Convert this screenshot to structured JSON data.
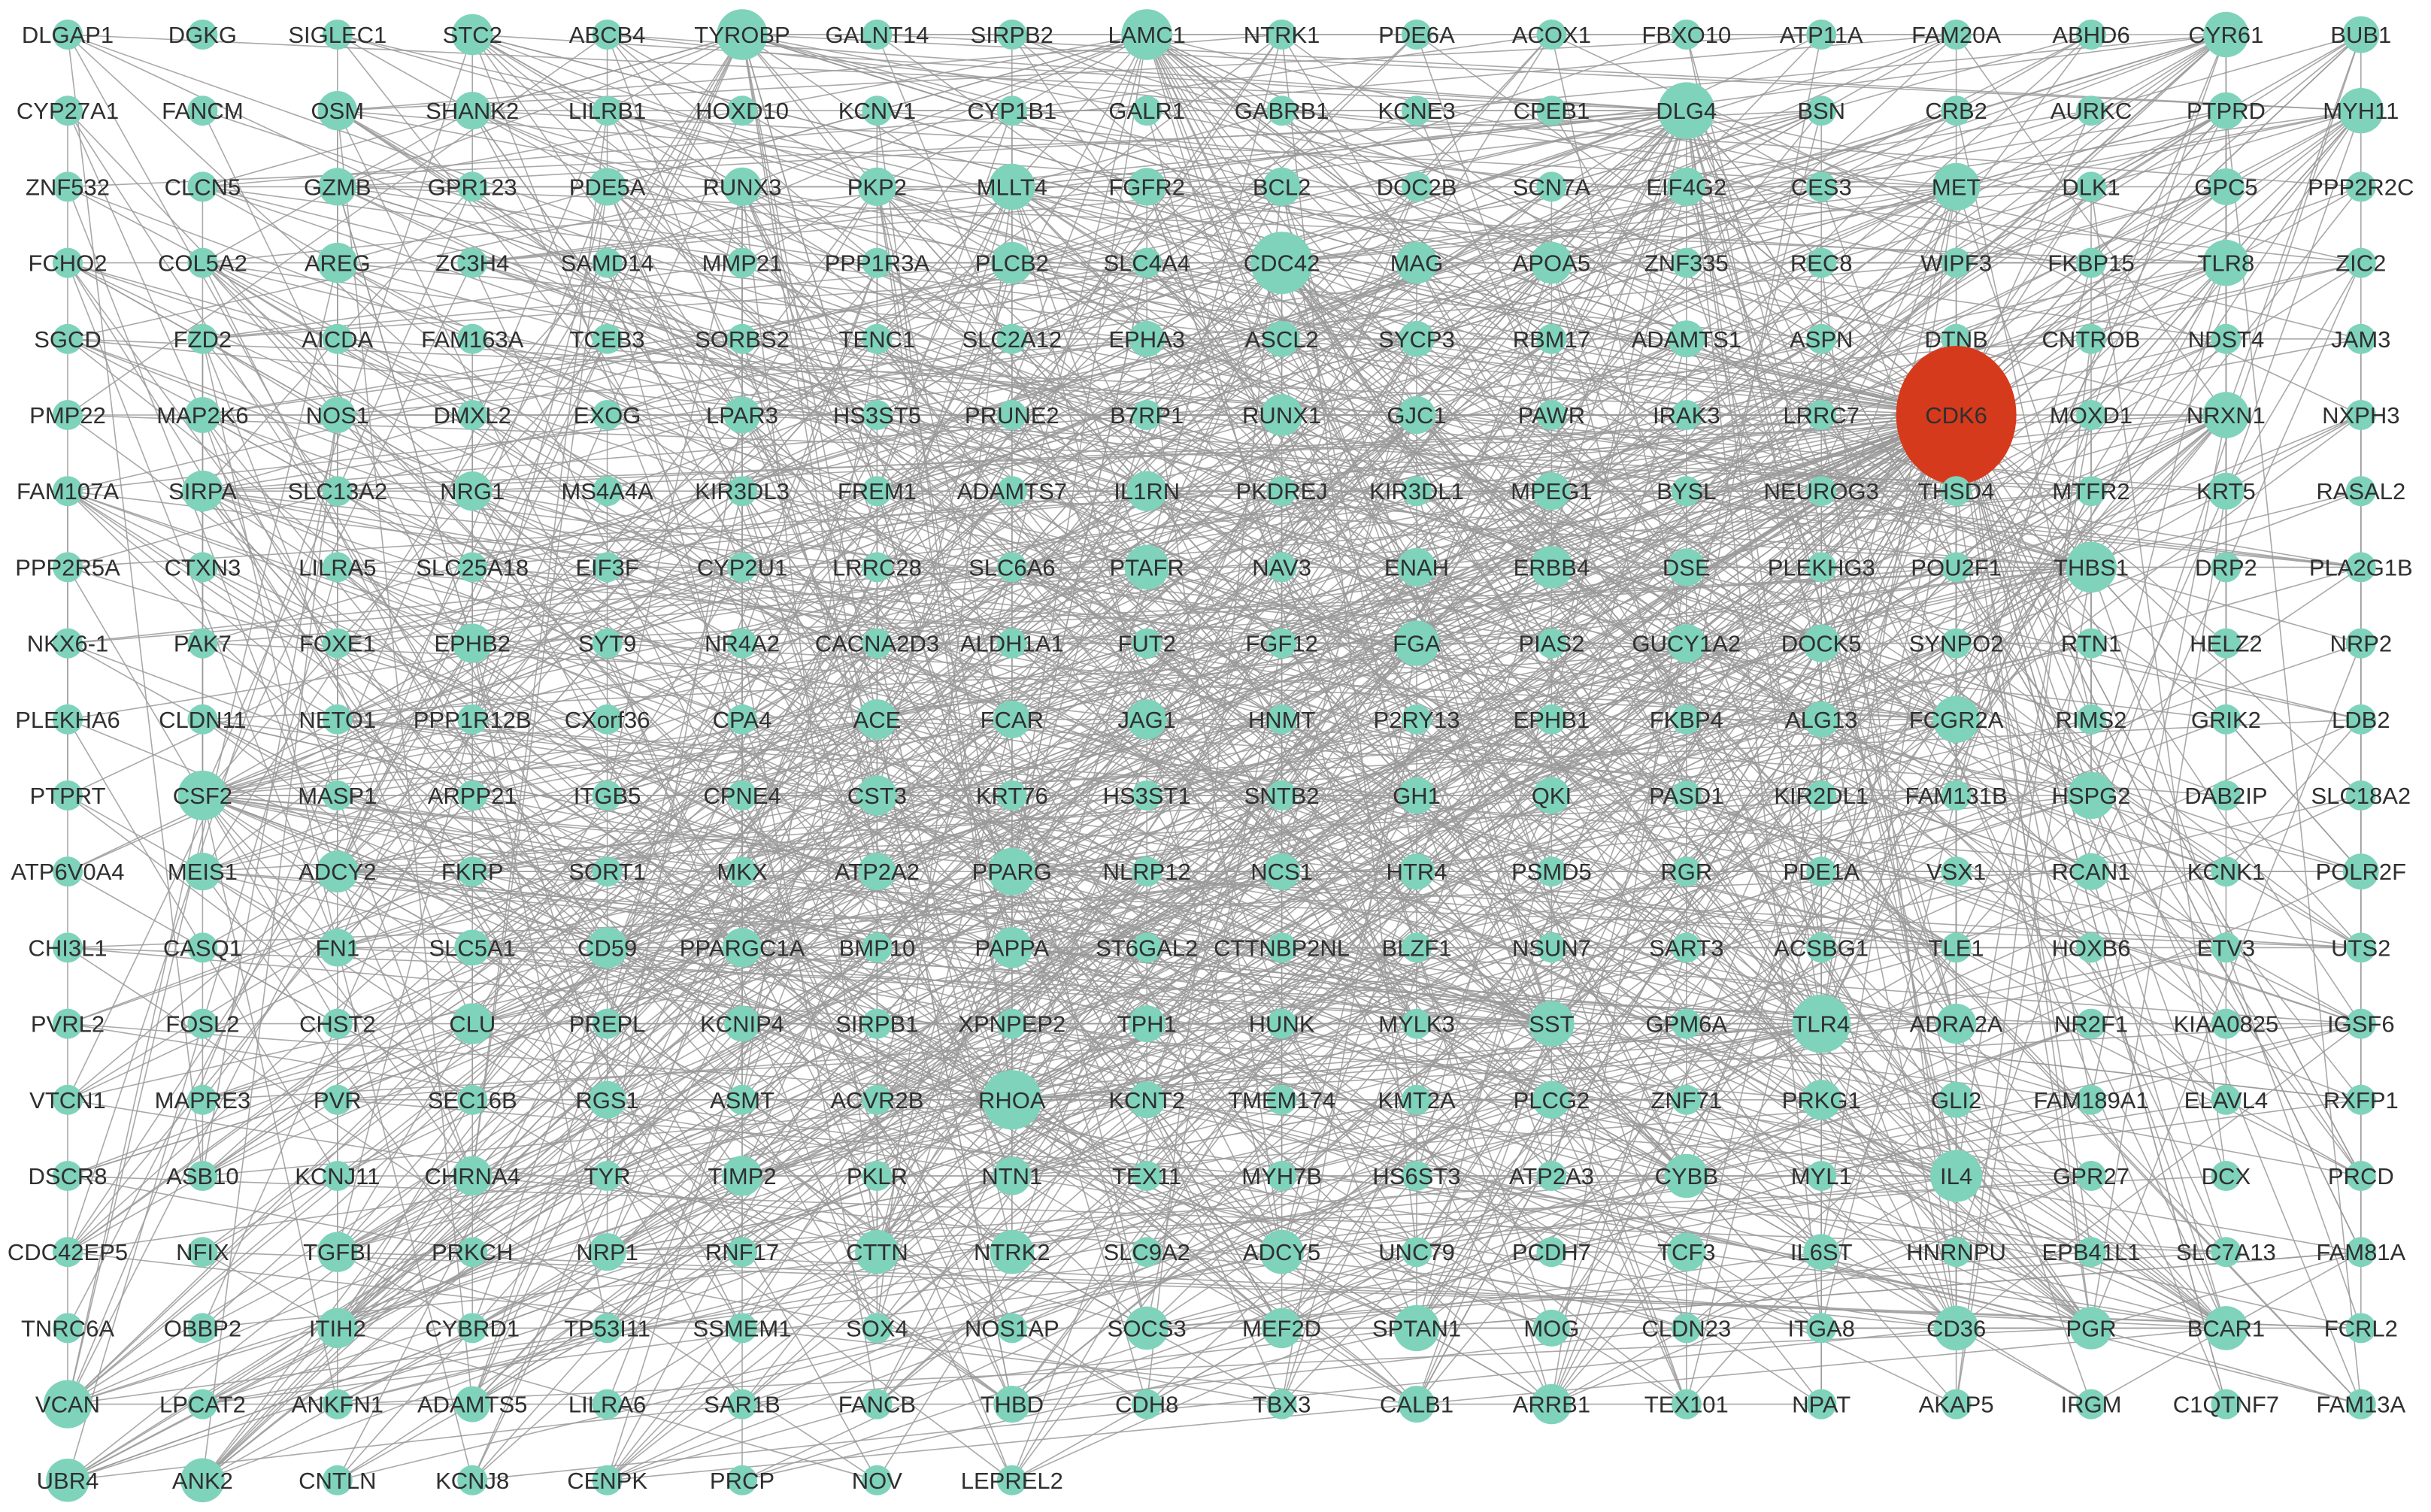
{
  "network": {
    "colors": {
      "node_default": "#7fd3bb",
      "node_highlight": "#d63a1c",
      "edge": "#9a9a9a",
      "label": "#2f2f2f",
      "background": "#ffffff"
    },
    "highlight_node": "CDK6",
    "rows": [
      [
        "DLGAP1",
        "DGKG",
        "SIGLEC1",
        "STC2",
        "ABCB4",
        "TYROBP",
        "GALNT14",
        "SIRPB2",
        "LAMC1",
        "NTRK1",
        "PDE6A",
        "ACOX1",
        "FBXO10",
        "ATP11A",
        "FAM20A",
        "ABHD6",
        "CYR61",
        "BUB1"
      ],
      [
        "CYP27A1",
        "FANCM",
        "OSM",
        "SHANK2",
        "LILRB1",
        "HOXD10",
        "KCNV1",
        "CYP1B1",
        "GALR1",
        "GABRB1",
        "KCNE3",
        "CPEB1",
        "DLG4",
        "BSN",
        "CRB2",
        "AURKC",
        "PTPRD",
        "MYH11"
      ],
      [
        "ZNF532",
        "CLCN5",
        "GZMB",
        "GPR123",
        "PDE5A",
        "RUNX3",
        "PKP2",
        "MLLT4",
        "FGFR2",
        "BCL2",
        "DOC2B",
        "SCN7A",
        "EIF4G2",
        "CES3",
        "MET",
        "DLK1",
        "GPC5",
        "PPP2R2C"
      ],
      [
        "FCHO2",
        "COL5A2",
        "AREG",
        "ZC3H4",
        "SAMD14",
        "MMP21",
        "PPP1R3A",
        "PLCB2",
        "SLC4A4",
        "CDC42",
        "MAG",
        "APOA5",
        "ZNF335",
        "REC8",
        "WIPF3",
        "FKBP15",
        "TLR8",
        "ZIC2"
      ],
      [
        "SGCD",
        "FZD2",
        "AICDA",
        "FAM163A",
        "TCEB3",
        "SORBS2",
        "TENC1",
        "SLC2A12",
        "EPHA3",
        "ASCL2",
        "SYCP3",
        "RBM17",
        "ADAMTS1",
        "ASPN",
        "DTNB",
        "CNTROB",
        "NDST4",
        "JAM3"
      ],
      [
        "PMP22",
        "MAP2K6",
        "NOS1",
        "DMXL2",
        "EXOG",
        "LPAR3",
        "HS3ST5",
        "PRUNE2",
        "B7RP1",
        "RUNX1",
        "GJC1",
        "PAWR",
        "IRAK3",
        "LRRC7",
        "CDK6",
        "MOXD1",
        "NRXN1",
        "NXPH3"
      ],
      [
        "FAM107A",
        "SIRPA",
        "SLC13A2",
        "NRG1",
        "MS4A4A",
        "KIR3DL3",
        "FREM1",
        "ADAMTS7",
        "IL1RN",
        "PKDREJ",
        "KIR3DL1",
        "MPEG1",
        "BYSL",
        "NEUROG3",
        "THSD4",
        "MTFR2",
        "KRT5",
        "RASAL2"
      ],
      [
        "PPP2R5A",
        "CTXN3",
        "LILRA5",
        "SLC25A18",
        "EIF3F",
        "CYP2U1",
        "LRRC28",
        "SLC6A6",
        "PTAFR",
        "NAV3",
        "ENAH",
        "ERBB4",
        "DSE",
        "PLEKHG3",
        "POU2F1",
        "THBS1",
        "DRP2",
        "PLA2G1B"
      ],
      [
        "NKX6-1",
        "PAK7",
        "FOXE1",
        "EPHB2",
        "SYT9",
        "NR4A2",
        "CACNA2D3",
        "ALDH1A1",
        "FUT2",
        "FGF12",
        "FGA",
        "PIAS2",
        "GUCY1A2",
        "DOCK5",
        "SYNPO2",
        "RTN1",
        "HELZ2",
        "NRP2"
      ],
      [
        "PLEKHA6",
        "CLDN11",
        "NETO1",
        "PPP1R12B",
        "CXorf36",
        "CPA4",
        "ACE",
        "FCAR",
        "JAG1",
        "HNMT",
        "P2RY13",
        "EPHB1",
        "FKBP4",
        "ALG13",
        "FCGR2A",
        "RIMS2",
        "GRIK2",
        "LDB2"
      ],
      [
        "PTPRT",
        "CSF2",
        "MASP1",
        "ARPP21",
        "ITGB5",
        "CPNE4",
        "CST3",
        "KRT76",
        "HS3ST1",
        "SNTB2",
        "GH1",
        "QKI",
        "PASD1",
        "KIR2DL1",
        "FAM131B",
        "HSPG2",
        "DAB2IP",
        "SLC18A2"
      ],
      [
        "ATP6V0A4",
        "MEIS1",
        "ADCY2",
        "FKRP",
        "SORT1",
        "MKX",
        "ATP2A2",
        "PPARG",
        "NLRP12",
        "NCS1",
        "HTR4",
        "PSMD5",
        "RGR",
        "PDE1A",
        "VSX1",
        "RCAN1",
        "KCNK1",
        "POLR2F"
      ],
      [
        "CHI3L1",
        "CASQ1",
        "FN1",
        "SLC5A1",
        "CD59",
        "PPARGC1A",
        "BMP10",
        "PAPPA",
        "ST6GAL2",
        "CTTNBP2NL",
        "BLZF1",
        "NSUN7",
        "SART3",
        "ACSBG1",
        "TLE1",
        "HOXB6",
        "ETV3",
        "UTS2"
      ],
      [
        "PVRL2",
        "FOSL2",
        "CHST2",
        "CLU",
        "PREPL",
        "KCNIP4",
        "SIRPB1",
        "XPNPEP2",
        "TPH1",
        "HUNK",
        "MYLK3",
        "SST",
        "GPM6A",
        "TLR4",
        "ADRA2A",
        "NR2F1",
        "KIAA0825",
        "IGSF6"
      ],
      [
        "VTCN1",
        "MAPRE3",
        "PVR",
        "SEC16B",
        "RGS1",
        "ASMT",
        "ACVR2B",
        "RHOA",
        "KCNT2",
        "TMEM174",
        "KMT2A",
        "PLCG2",
        "ZNF71",
        "PRKG1",
        "GLI2",
        "FAM189A1",
        "ELAVL4",
        "RXFP1"
      ],
      [
        "DSCR8",
        "ASB10",
        "KCNJ11",
        "CHRNA4",
        "TYR",
        "TIMP2",
        "PKLR",
        "NTN1",
        "TEX11",
        "MYH7B",
        "HS6ST3",
        "ATP2A3",
        "CYBB",
        "MYL1",
        "IL4",
        "GPR27",
        "DCX",
        "PRCD"
      ],
      [
        "CDC42EP5",
        "NFIX",
        "TGFBI",
        "PRKCH",
        "NRP1",
        "RNF17",
        "CTTN",
        "NTRK2",
        "SLC9A2",
        "ADCY5",
        "UNC79",
        "PCDH7",
        "TCF3",
        "IL6ST",
        "HNRNPU",
        "EPB41L1",
        "SLC7A13",
        "FAM81A"
      ],
      [
        "TNRC6A",
        "OBBP2",
        "ITIH2",
        "CYBRD1",
        "TP53I11",
        "SSMEM1",
        "SOX4",
        "NOS1AP",
        "SOCS3",
        "MEF2D",
        "SPTAN1",
        "MOG",
        "CLDN23",
        "ITGA8",
        "CD36",
        "PGR",
        "BCAR1",
        "FCRL2"
      ],
      [
        "VCAN",
        "LPCAT2",
        "ANKFN1",
        "ADAMTS5",
        "LILRA6",
        "SAR1B",
        "FANCB",
        "THBD",
        "CDH8",
        "TBX3",
        "CALB1",
        "ARRB1",
        "TEX101",
        "NPAT",
        "AKAP5",
        "IRGM",
        "C1QTNF7",
        "FAM13A"
      ],
      [
        "UBR4",
        "ANK2",
        "CNTLN",
        "KCNJ8",
        "CENPK",
        "PRCP",
        "NOV",
        "LEPREL2"
      ]
    ],
    "node_degree": {
      "CDK6": 10,
      "CDC42": 6,
      "RHOA": 5.5,
      "TLR4": 5.3,
      "DLG4": 5,
      "IL4": 4.2,
      "TYROBP": 4,
      "LAMC1": 4,
      "THBS1": 4,
      "CSF2": 3.8,
      "VCAN": 3.6,
      "MET": 3.5,
      "PPARG": 3.5,
      "HSPG2": 3.4,
      "FCGR2A": 3.4,
      "MLLT4": 3.3,
      "TLR8": 3.3,
      "CYR61": 3.2,
      "MYH11": 3.2,
      "NRXN1": 3.3,
      "SPTAN1": 3.3,
      "FGA": 3.2,
      "SST": 3.2,
      "PTAFR": 3.1,
      "CD36": 3.1,
      "BCAR1": 3,
      "ADCY5": 3,
      "NTRK2": 3,
      "CTTN": 3,
      "CYBB": 3,
      "ANK2": 3,
      "UBR4": 2.9,
      "SOCS3": 2.9,
      "PGR": 2.8,
      "ERBB4": 2.8,
      "PLCB2": 2.7,
      "MAG": 2.7,
      "APOA5": 2.7,
      "RUNX1": 2.7,
      "ADCY2": 2.7,
      "PAPPA": 2.6,
      "IL1RN": 2.5,
      "ADRA2A": 2.5,
      "ARRB1": 2.5,
      "PRKG1": 2.5,
      "MEF2D": 2.5,
      "TIMP2": 2.5,
      "CLU": 2.6,
      "CD59": 2.6,
      "ITIH2": 2.5,
      "TGFBI": 2.5,
      "ACE": 2.5,
      "CST3": 2.5,
      "JAG1": 2.5,
      "AREG": 2.5,
      "SIRPA": 2.6,
      "OSM": 2.4,
      "STC2": 2.6,
      "CHRNA4": 2.4,
      "PKP2": 2.3,
      "BCL2": 2.3,
      "EPHB2": 2.4,
      "NRG1": 2.4,
      "GZMB": 2.2,
      "DOCK5": 2.2,
      "EIF4G2": 2.3,
      "ENAH": 2.3,
      "GJC1": 2.2,
      "SHANK2": 2.2,
      "RUNX3": 2.3,
      "PPARGC1A": 2.4,
      "NTN1": 2.3,
      "TCF3": 2.3,
      "GUCY1A2": 2.3,
      "DSE": 2.2,
      "MPEG1": 2.2,
      "PDE5A": 2.2,
      "FGFR2": 2.2,
      "FCAR": 2.2,
      "RGS1": 2.2,
      "NRP1": 2.2,
      "PLCG2": 2.2,
      "TPH1": 2.1,
      "ADAMTS1": 2.1,
      "LPAR3": 2.1,
      "MEIS1": 2.2,
      "FN1": 2.2,
      "ATP2A2": 2.2,
      "KRT5": 2.1,
      "GPC5": 2.1,
      "BUB1": 2.1,
      "PTPRD": 2.1,
      "QKI": 2.1,
      "GH1": 2.1,
      "MOG": 2.1,
      "CALB1": 2.1,
      "THBD": 2.1,
      "KCNT2": 2.1,
      "SLC5A1": 2,
      "GLI2": 2,
      "IL6ST": 2,
      "POLR2F": 2,
      "RCAN1": 2.1,
      "SYCP3": 2,
      "NOS1": 2,
      "MAP2K6": 2,
      "ASCL2": 2,
      "EPHA3": 2,
      "HTR4": 2,
      "ALG13": 2,
      "NCS1": 2.1,
      "ADAMTS5": 2,
      "KCNIP4": 2
    }
  }
}
